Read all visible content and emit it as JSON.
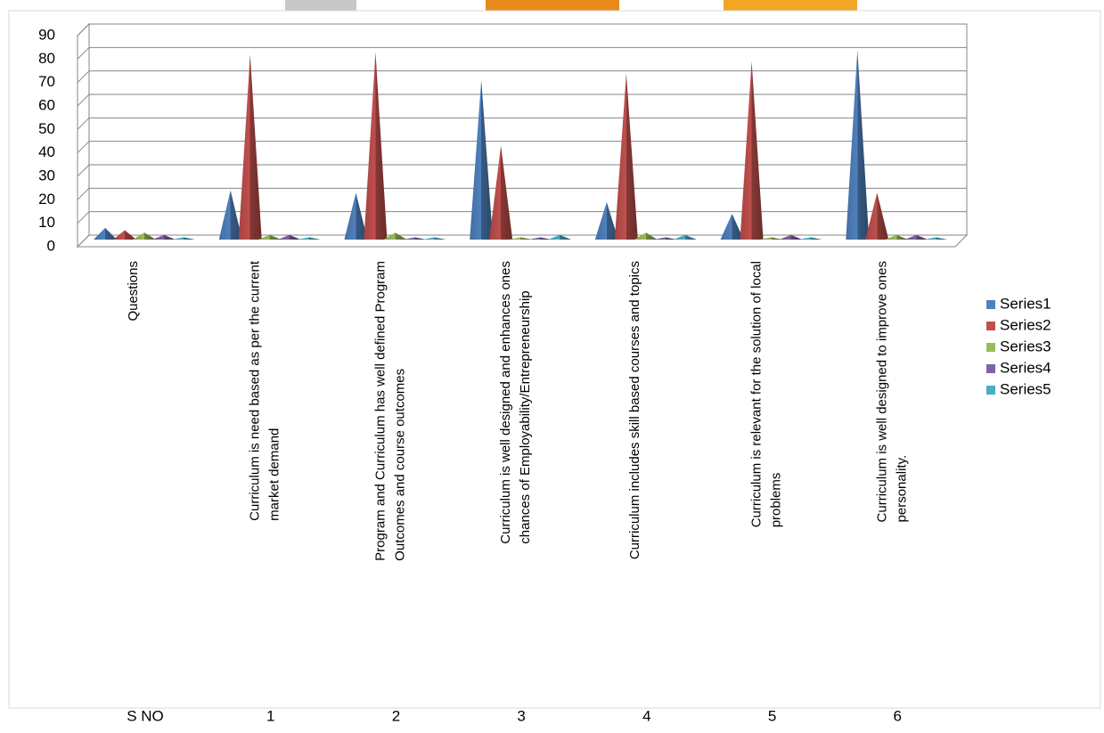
{
  "chart_data": {
    "type": "cone",
    "categories": [
      [
        "Questions"
      ],
      [
        "Curriculum is need based as per the current",
        "market demand"
      ],
      [
        "Program and Curriculum has well defined Program",
        "Outcomes  and course outcomes"
      ],
      [
        "Curriculum is well designed and enhances ones",
        "chances of Employability/Entrepreneurship"
      ],
      [
        "Curriculum includes skill based courses and topics"
      ],
      [
        "Curriculum is relevant for the solution of local",
        "problems"
      ],
      [
        "Curriculum is well designed to improve ones",
        "personality."
      ]
    ],
    "secondary_categories": [
      "S NO",
      "1",
      "2",
      "3",
      "4",
      "5",
      "6"
    ],
    "series": [
      {
        "name": "Series1",
        "color": "#4f81bd",
        "values": [
          5,
          21,
          20,
          68,
          16,
          11,
          81
        ]
      },
      {
        "name": "Series2",
        "color": "#c0504d",
        "values": [
          4,
          79,
          80,
          40,
          71,
          76,
          20
        ]
      },
      {
        "name": "Series3",
        "color": "#9bbb59",
        "values": [
          3,
          2,
          3,
          1,
          3,
          1,
          2
        ]
      },
      {
        "name": "Series4",
        "color": "#8064a2",
        "values": [
          2,
          2,
          1,
          1,
          1,
          2,
          2
        ]
      },
      {
        "name": "Series5",
        "color": "#4bacc6",
        "values": [
          1,
          1,
          1,
          2,
          2,
          1,
          1
        ]
      }
    ],
    "ylim": [
      0,
      90
    ],
    "yticks": [
      0,
      10,
      20,
      30,
      40,
      50,
      60,
      70,
      80,
      90
    ],
    "grid": true,
    "legend": "right"
  }
}
